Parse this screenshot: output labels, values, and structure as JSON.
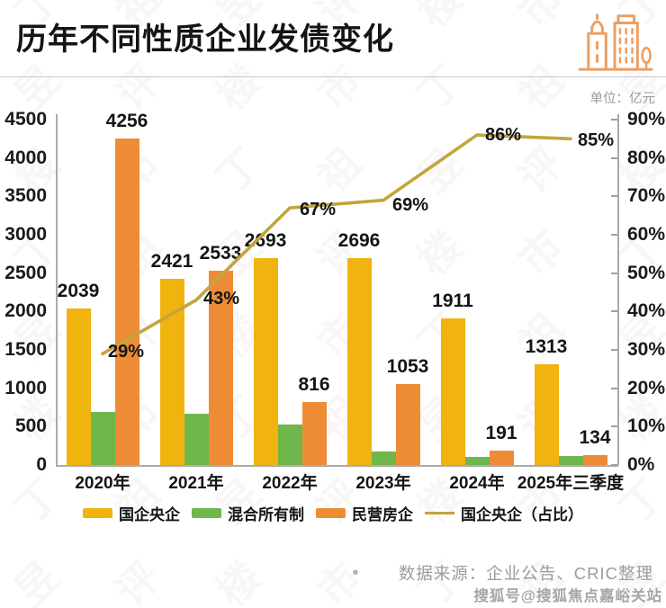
{
  "header": {
    "title": "历年不同性质企业发债变化",
    "unit_label": "单位：亿元",
    "logo_icon": "buildings-icon",
    "logo_color": "#EC9E62"
  },
  "chart_data": {
    "type": "bar",
    "subtype": "grouped bars with right-axis percentage line",
    "title": "历年不同性质企业发债变化",
    "categories": [
      "2020年",
      "2021年",
      "2022年",
      "2023年",
      "2024年",
      "2025年三季度"
    ],
    "series": [
      {
        "key": "soe-central",
        "name": "国企央企",
        "type": "bar",
        "axis": "left",
        "color": "#F1B30E",
        "values": [
          2039,
          2421,
          2693,
          2696,
          1911,
          1313
        ],
        "data_labels": true
      },
      {
        "key": "mixed-ownership",
        "name": "混合所有制",
        "type": "bar",
        "axis": "left",
        "color": "#70B74B",
        "values": [
          690,
          665,
          530,
          180,
          100,
          115
        ],
        "data_labels": false
      },
      {
        "key": "private-developers",
        "name": "民营房企",
        "type": "bar",
        "axis": "left",
        "color": "#EE8C35",
        "values": [
          4256,
          2533,
          816,
          1053,
          191,
          134
        ],
        "data_labels": true
      },
      {
        "key": "soe-share-line",
        "name": "国企央企（占比）",
        "type": "line",
        "axis": "right",
        "color": "#C2A53C",
        "values": [
          29,
          43,
          67,
          69,
          86,
          85
        ],
        "data_labels": true,
        "label_suffix": "%"
      }
    ],
    "left_axis": {
      "min": 0,
      "max": 4500,
      "step": 500,
      "ticks": [
        "0",
        "500",
        "1000",
        "1500",
        "2000",
        "2500",
        "3000",
        "3500",
        "4000",
        "4500"
      ]
    },
    "right_axis": {
      "min": 0,
      "max": 90,
      "step": 10,
      "suffix": "%",
      "ticks": [
        "0%",
        "10%",
        "20%",
        "30%",
        "40%",
        "50%",
        "60%",
        "70%",
        "80%",
        "90%"
      ]
    },
    "legend_position": "bottom",
    "grid": false
  },
  "footer": {
    "bullet": "●",
    "source": "数据来源：企业公告、CRIC整理",
    "credit": "搜狐号@搜狐焦点嘉峪关站"
  },
  "watermark": {
    "text": "丁祖昱评楼市"
  }
}
